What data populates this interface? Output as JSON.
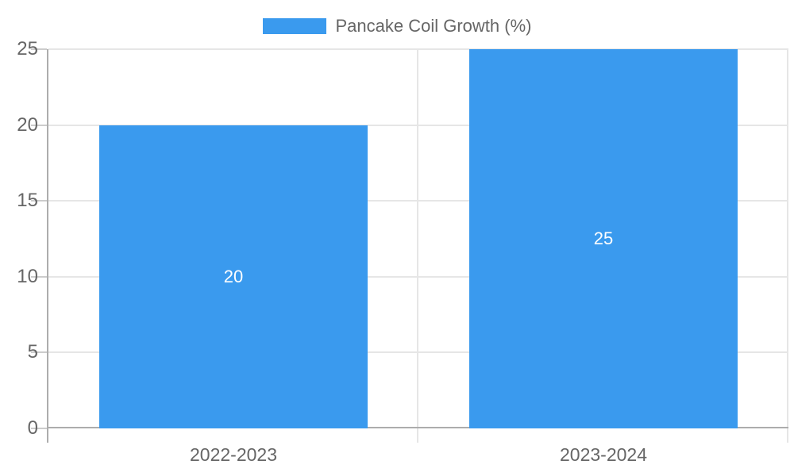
{
  "chart_data": {
    "type": "bar",
    "title": "Pancake Coil Growth (%)",
    "categories": [
      "2022-2023",
      "2023-2024"
    ],
    "series": [
      {
        "name": "Pancake Coil Growth (%)",
        "values": [
          20,
          25
        ]
      }
    ],
    "data_labels": [
      "20",
      "25"
    ],
    "y_ticks": [
      0,
      5,
      10,
      15,
      20,
      25
    ],
    "ylim": [
      0,
      25
    ],
    "xlabel": "",
    "ylabel": "",
    "grid": true,
    "legend_position": "top"
  },
  "legend": {
    "label": "Pancake Coil Growth (%)"
  },
  "colors": {
    "bar": "#3a9aee",
    "grid": "#e6e6e6",
    "axis": "#adadad",
    "tick": "#cccccc",
    "text": "#666666",
    "data_label": "#ffffff",
    "background": "#ffffff"
  }
}
